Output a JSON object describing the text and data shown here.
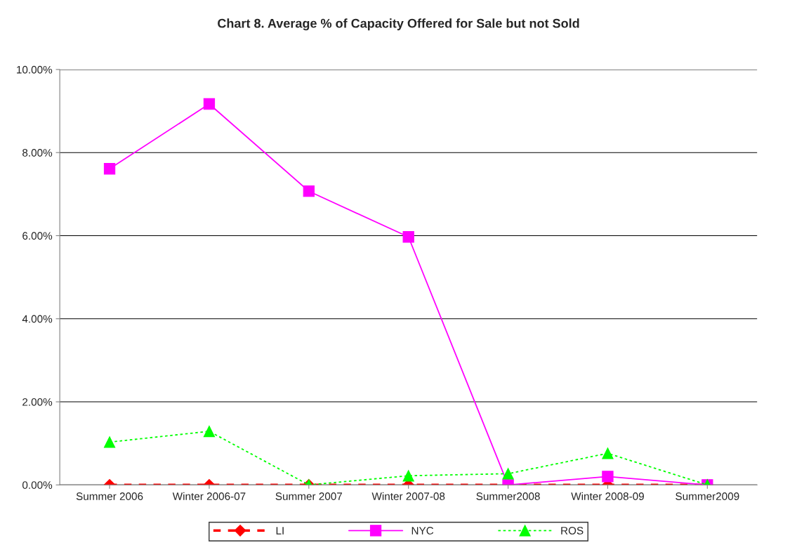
{
  "chart_data": {
    "type": "line",
    "title": "Chart 8. Average % of Capacity Offered for Sale but not Sold",
    "categories": [
      "Summer 2006",
      "Winter 2006-07",
      "Summer 2007",
      "Winter 2007-08",
      "Summer2008",
      "Winter 2008-09",
      "Summer2009"
    ],
    "series": [
      {
        "name": "LI",
        "color": "#ff0000",
        "marker": "diamond",
        "line_style": "dashed",
        "values": [
          0,
          0,
          0,
          0,
          0,
          0,
          0
        ]
      },
      {
        "name": "NYC",
        "color": "#ff00ff",
        "marker": "square",
        "line_style": "solid",
        "values": [
          7.61,
          9.17,
          7.07,
          5.97,
          0,
          0.2,
          0
        ]
      },
      {
        "name": "ROS",
        "color": "#00ff00",
        "marker": "triangle",
        "line_style": "dotted",
        "values": [
          1.03,
          1.29,
          0,
          0.22,
          0.27,
          0.76,
          0
        ]
      }
    ],
    "ylim": [
      0,
      10
    ],
    "yticks": [
      {
        "value": 0,
        "label": "0.00%"
      },
      {
        "value": 2,
        "label": "2.00%"
      },
      {
        "value": 4,
        "label": "4.00%"
      },
      {
        "value": 6,
        "label": "6.00%"
      },
      {
        "value": 8,
        "label": "8.00%"
      },
      {
        "value": 10,
        "label": "10.00%"
      }
    ],
    "grid": "y",
    "legend": "bottom"
  }
}
